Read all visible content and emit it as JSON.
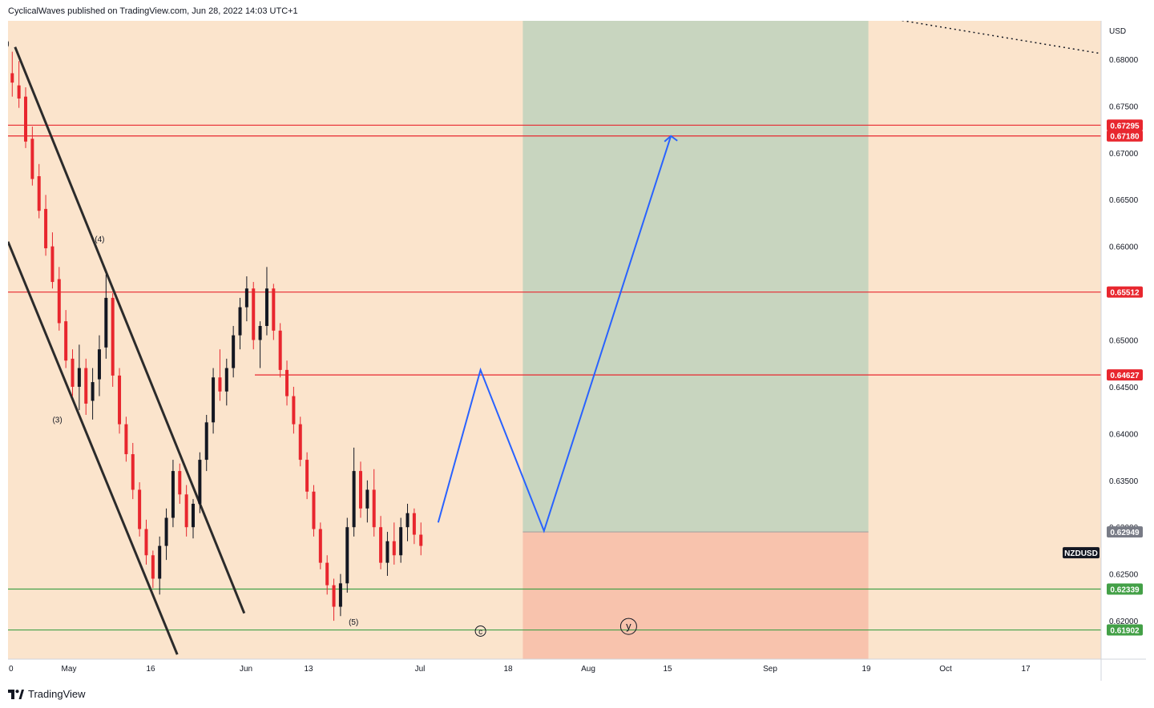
{
  "header": {
    "publisher": "CyclicalWaves published on TradingView.com, Jun 28, 2022 14:03 UTC+1"
  },
  "footer": {
    "brand": "TradingView"
  },
  "colors": {
    "background": "#fbe4cc",
    "target_zone": "#c8d5bf",
    "stop_zone": "#f8c3ad",
    "candle_up": "#131722",
    "candle_down": "#e8262e",
    "resistance": "#e8262e",
    "support": "#43a047",
    "projection": "#2962ff",
    "channel": "#2b2b2b",
    "entry_label": "#787b86",
    "symbol_label": "#131722"
  },
  "chart_data": {
    "type": "candlestick",
    "symbol": "NZDUSD",
    "currency": "USD",
    "y_range": [
      0.6159,
      0.6841
    ],
    "x_ticks": [
      "0",
      "May",
      "16",
      "Jun",
      "13",
      "Jul",
      "18",
      "Aug",
      "15",
      "Sep",
      "19",
      "Oct",
      "17"
    ],
    "y_ticks": [
      "0.68000",
      "0.67500",
      "0.67000",
      "0.66500",
      "0.66000",
      "0.65500",
      "0.65000",
      "0.64500",
      "0.64000",
      "0.63500",
      "0.63000",
      "0.62500",
      "0.62000"
    ],
    "price_lines": [
      {
        "value": 0.67295,
        "label": "0.67295",
        "role": "resistance"
      },
      {
        "value": 0.6718,
        "label": "0.67180",
        "role": "resistance"
      },
      {
        "value": 0.65512,
        "label": "0.65512",
        "role": "resistance"
      },
      {
        "value": 0.64627,
        "label": "0.64627",
        "role": "resistance"
      },
      {
        "value": 0.62339,
        "label": "0.62339",
        "role": "support"
      },
      {
        "value": 0.61902,
        "label": "0.61902",
        "role": "support"
      }
    ],
    "entry_price": {
      "value": 0.62949,
      "label": "0.62949"
    },
    "last_price_label": "NZDUSD",
    "wave_labels": [
      {
        "text": "(4)",
        "time": 13,
        "price": 0.6605
      },
      {
        "text": "(3)",
        "time": 7,
        "price": 0.6412
      },
      {
        "text": "(5)",
        "time": 49,
        "price": 0.6196
      },
      {
        "text": ")",
        "time": 0,
        "price": 0.6814
      },
      {
        "text": "c",
        "time": 67,
        "price": 0.6189,
        "circled": true
      },
      {
        "text": "y",
        "time": 88,
        "price": 0.6194,
        "circled": true
      }
    ],
    "projection_path": [
      {
        "time": 61,
        "price": 0.6305
      },
      {
        "time": 67,
        "price": 0.6468
      },
      {
        "time": 76,
        "price": 0.6296
      },
      {
        "time": 94,
        "price": 0.6718
      }
    ],
    "trade_zone": {
      "time_start": 73,
      "time_end": 122,
      "entry": 0.62949,
      "target_top": 0.6841,
      "stop_bottom": 0.6159
    },
    "channel_lines": [
      {
        "from": {
          "time": 1,
          "price": 0.6813
        },
        "to": {
          "time": 33.5,
          "price": 0.6208
        }
      },
      {
        "from": {
          "time": 0,
          "price": 0.6605
        },
        "to": {
          "time": 24,
          "price": 0.6164
        }
      }
    ],
    "dotted_trendline": {
      "from": {
        "time": 140,
        "price": 0.6843
      },
      "to": {
        "time": 175,
        "price": 0.6806
      }
    },
    "ohlc": [
      [
        0.6785,
        0.6808,
        0.676,
        0.6775
      ],
      [
        0.6772,
        0.6798,
        0.6748,
        0.6758
      ],
      [
        0.676,
        0.677,
        0.6705,
        0.6712
      ],
      [
        0.6715,
        0.6728,
        0.6665,
        0.6672
      ],
      [
        0.6675,
        0.6688,
        0.663,
        0.6638
      ],
      [
        0.664,
        0.6655,
        0.659,
        0.6598
      ],
      [
        0.66,
        0.6615,
        0.6555,
        0.6562
      ],
      [
        0.6565,
        0.6578,
        0.651,
        0.6518
      ],
      [
        0.652,
        0.6532,
        0.647,
        0.6478
      ],
      [
        0.648,
        0.649,
        0.644,
        0.645
      ],
      [
        0.645,
        0.6495,
        0.6425,
        0.647
      ],
      [
        0.647,
        0.648,
        0.642,
        0.6432
      ],
      [
        0.6435,
        0.647,
        0.6415,
        0.6455
      ],
      [
        0.6458,
        0.6505,
        0.644,
        0.649
      ],
      [
        0.6492,
        0.657,
        0.648,
        0.6545
      ],
      [
        0.6545,
        0.655,
        0.645,
        0.6462
      ],
      [
        0.6462,
        0.647,
        0.64,
        0.641
      ],
      [
        0.641,
        0.6418,
        0.637,
        0.6378
      ],
      [
        0.6378,
        0.639,
        0.633,
        0.634
      ],
      [
        0.634,
        0.6348,
        0.629,
        0.6298
      ],
      [
        0.6298,
        0.6308,
        0.626,
        0.627
      ],
      [
        0.627,
        0.6275,
        0.6235,
        0.6245
      ],
      [
        0.6245,
        0.629,
        0.6228,
        0.628
      ],
      [
        0.628,
        0.632,
        0.6265,
        0.631
      ],
      [
        0.631,
        0.6372,
        0.63,
        0.636
      ],
      [
        0.636,
        0.6368,
        0.6325,
        0.6335
      ],
      [
        0.6335,
        0.6345,
        0.629,
        0.63
      ],
      [
        0.63,
        0.633,
        0.6288,
        0.6325
      ],
      [
        0.6325,
        0.638,
        0.6315,
        0.6372
      ],
      [
        0.6372,
        0.642,
        0.636,
        0.6412
      ],
      [
        0.6412,
        0.647,
        0.64,
        0.646
      ],
      [
        0.646,
        0.649,
        0.6435,
        0.6445
      ],
      [
        0.6445,
        0.648,
        0.643,
        0.647
      ],
      [
        0.647,
        0.6515,
        0.646,
        0.6505
      ],
      [
        0.6505,
        0.6545,
        0.649,
        0.6535
      ],
      [
        0.6535,
        0.6568,
        0.652,
        0.6555
      ],
      [
        0.6555,
        0.6562,
        0.649,
        0.65
      ],
      [
        0.65,
        0.652,
        0.647,
        0.6515
      ],
      [
        0.6515,
        0.6578,
        0.6505,
        0.6555
      ],
      [
        0.6555,
        0.656,
        0.65,
        0.651
      ],
      [
        0.651,
        0.6518,
        0.646,
        0.6468
      ],
      [
        0.6468,
        0.6478,
        0.643,
        0.644
      ],
      [
        0.644,
        0.645,
        0.64,
        0.641
      ],
      [
        0.641,
        0.6418,
        0.6365,
        0.6372
      ],
      [
        0.6372,
        0.638,
        0.633,
        0.6338
      ],
      [
        0.6338,
        0.6345,
        0.629,
        0.6298
      ],
      [
        0.6298,
        0.6305,
        0.6255,
        0.6262
      ],
      [
        0.6262,
        0.627,
        0.6228,
        0.6238
      ],
      [
        0.6238,
        0.6245,
        0.62,
        0.6215
      ],
      [
        0.6215,
        0.625,
        0.6205,
        0.624
      ],
      [
        0.624,
        0.631,
        0.623,
        0.63
      ],
      [
        0.63,
        0.6385,
        0.629,
        0.636
      ],
      [
        0.636,
        0.637,
        0.631,
        0.632
      ],
      [
        0.632,
        0.635,
        0.6305,
        0.634
      ],
      [
        0.634,
        0.6362,
        0.629,
        0.63
      ],
      [
        0.63,
        0.6312,
        0.6255,
        0.6262
      ],
      [
        0.6262,
        0.6295,
        0.6248,
        0.6285
      ],
      [
        0.6285,
        0.6305,
        0.626,
        0.627
      ],
      [
        0.627,
        0.631,
        0.6262,
        0.63
      ],
      [
        0.63,
        0.6325,
        0.6285,
        0.6315
      ],
      [
        0.6315,
        0.632,
        0.6282,
        0.6292
      ],
      [
        0.6292,
        0.6305,
        0.627,
        0.628
      ]
    ]
  }
}
